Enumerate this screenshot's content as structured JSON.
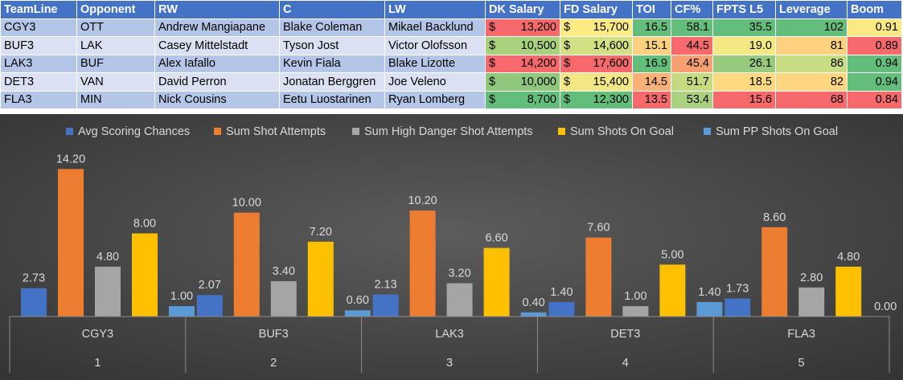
{
  "table": {
    "headers": [
      "TeamLine",
      "Opponent",
      "RW",
      "C",
      "LW",
      "DK Salary",
      "FD Salary",
      "TOI",
      "CF%",
      "FPTS L5",
      "Leverage",
      "Boom"
    ],
    "rows": [
      {
        "teamline": "CGY3",
        "opponent": "OTT",
        "rw": "Andrew Mangiapane",
        "c": "Blake Coleman",
        "lw": "Mikael Backlund",
        "dk_salary": "13,200",
        "fd_salary": "15,700",
        "toi": "16.5",
        "cf": "58.1",
        "fpts": "35.5",
        "leverage": "102",
        "boom": "0.91",
        "colors": {
          "dk": "#f8696b",
          "fd": "#ffeb84",
          "toi": "#63be7b",
          "cf": "#63be7b",
          "fpts": "#63be7b",
          "leverage": "#63be7b",
          "boom": "#fbe983"
        }
      },
      {
        "teamline": "BUF3",
        "opponent": "LAK",
        "rw": "Casey Mittelstadt",
        "c": "Tyson Jost",
        "lw": "Victor Olofsson",
        "dk_salary": "10,500",
        "fd_salary": "14,600",
        "toi": "15.1",
        "cf": "44.5",
        "fpts": "19.0",
        "leverage": "81",
        "boom": "0.89",
        "colors": {
          "dk": "#a9d27f",
          "fd": "#d2df82",
          "toi": "#fdd17f",
          "cf": "#f8696b",
          "fpts": "#f2e884",
          "leverage": "#fdd17f",
          "boom": "#f8696b"
        }
      },
      {
        "teamline": "LAK3",
        "opponent": "BUF",
        "rw": "Alex Iafallo",
        "c": "Kevin Fiala",
        "lw": "Blake Lizotte",
        "dk_salary": "14,200",
        "fd_salary": "17,600",
        "toi": "16.9",
        "cf": "45.4",
        "fpts": "26.1",
        "leverage": "86",
        "boom": "0.94",
        "colors": {
          "dk": "#f8696b",
          "fd": "#f8696b",
          "toi": "#63be7b",
          "cf": "#f9a070",
          "fpts": "#98ca7e",
          "leverage": "#c8dc81",
          "boom": "#63be7b"
        }
      },
      {
        "teamline": "DET3",
        "opponent": "VAN",
        "rw": "David Perron",
        "c": "Jonatan Berggren",
        "lw": "Joe Veleno",
        "dk_salary": "10,000",
        "fd_salary": "15,400",
        "toi": "14.5",
        "cf": "51.7",
        "fpts": "18.5",
        "leverage": "82",
        "boom": "0.94",
        "colors": {
          "dk": "#8ec77d",
          "fd": "#f1e784",
          "toi": "#fbb078",
          "cf": "#c5db81",
          "fpts": "#fed980",
          "leverage": "#fdd67f",
          "boom": "#63be7b"
        }
      },
      {
        "teamline": "FLA3",
        "opponent": "MIN",
        "rw": "Nick Cousins",
        "c": "Eetu Luostarinen",
        "lw": "Ryan Lomberg",
        "dk_salary": "8,700",
        "fd_salary": "12,300",
        "toi": "13.5",
        "cf": "53.4",
        "fpts": "15.6",
        "leverage": "68",
        "boom": "0.84",
        "colors": {
          "dk": "#63be7b",
          "fd": "#63be7b",
          "toi": "#f8696b",
          "cf": "#a8d27f",
          "fpts": "#f8696b",
          "leverage": "#f8696b",
          "boom": "#f8696b"
        }
      }
    ]
  },
  "chart_data": {
    "type": "bar",
    "categories": [
      "CGY3",
      "BUF3",
      "LAK3",
      "DET3",
      "FLA3"
    ],
    "category_numbers": [
      "1",
      "2",
      "3",
      "4",
      "5"
    ],
    "series": [
      {
        "name": "Avg Scoring Chances",
        "color": "#4472c4",
        "values": [
          2.73,
          2.07,
          2.13,
          1.4,
          1.73
        ],
        "labels": [
          "2.73",
          "2.07",
          "2.13",
          "1.40",
          "1.73"
        ]
      },
      {
        "name": "Sum Shot Attempts",
        "color": "#ed7d31",
        "values": [
          14.2,
          10.0,
          10.2,
          7.6,
          8.6
        ],
        "labels": [
          "14.20",
          "10.00",
          "10.20",
          "7.60",
          "8.60"
        ]
      },
      {
        "name": "Sum High Danger Shot Attempts",
        "color": "#a5a5a5",
        "values": [
          4.8,
          3.4,
          3.2,
          1.0,
          2.8
        ],
        "labels": [
          "4.80",
          "3.40",
          "3.20",
          "1.00",
          "2.80"
        ]
      },
      {
        "name": "Sum Shots On Goal",
        "color": "#ffc000",
        "values": [
          8.0,
          7.2,
          6.6,
          5.0,
          4.8
        ],
        "labels": [
          "8.00",
          "7.20",
          "6.60",
          "5.00",
          "4.80"
        ]
      },
      {
        "name": "Sum PP Shots On Goal",
        "color": "#5b9bd5",
        "values": [
          1.0,
          0.6,
          0.4,
          1.4,
          0.0
        ],
        "labels": [
          "1.00",
          "0.60",
          "0.40",
          "1.40",
          "0.00"
        ]
      }
    ],
    "ylim": [
      0,
      15
    ],
    "legend": "top",
    "grid": false
  }
}
